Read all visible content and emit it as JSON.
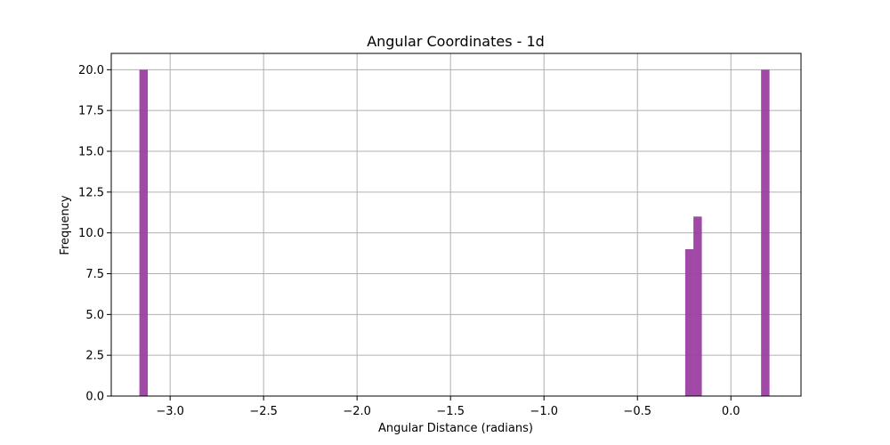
{
  "chart_data": {
    "type": "bar",
    "title": "Angular Coordinates - 1d",
    "xlabel": "Angular Distance (radians)",
    "ylabel": "Frequency",
    "xlim": [
      -3.315,
      0.375
    ],
    "ylim": [
      0,
      21
    ],
    "x_ticks": [
      -3.0,
      -2.5,
      -2.0,
      -1.5,
      -1.0,
      -0.5,
      0.0
    ],
    "x_tick_labels": [
      "−3.0",
      "−2.5",
      "−2.0",
      "−1.5",
      "−1.0",
      "−0.5",
      "0.0"
    ],
    "y_ticks": [
      0,
      2.5,
      5,
      7.5,
      10,
      12.5,
      15,
      17.5,
      20
    ],
    "y_tick_labels": [
      "0.0",
      "2.5",
      "5.0",
      "7.5",
      "10.0",
      "12.5",
      "15.0",
      "17.5",
      "20.0"
    ],
    "grid": true,
    "color": "#9b3fa2",
    "bar_width": 0.045,
    "bins": [
      {
        "x": -3.142,
        "value": 20
      },
      {
        "x": -0.222,
        "value": 9
      },
      {
        "x": -0.178,
        "value": 11
      },
      {
        "x": 0.184,
        "value": 20
      }
    ]
  }
}
